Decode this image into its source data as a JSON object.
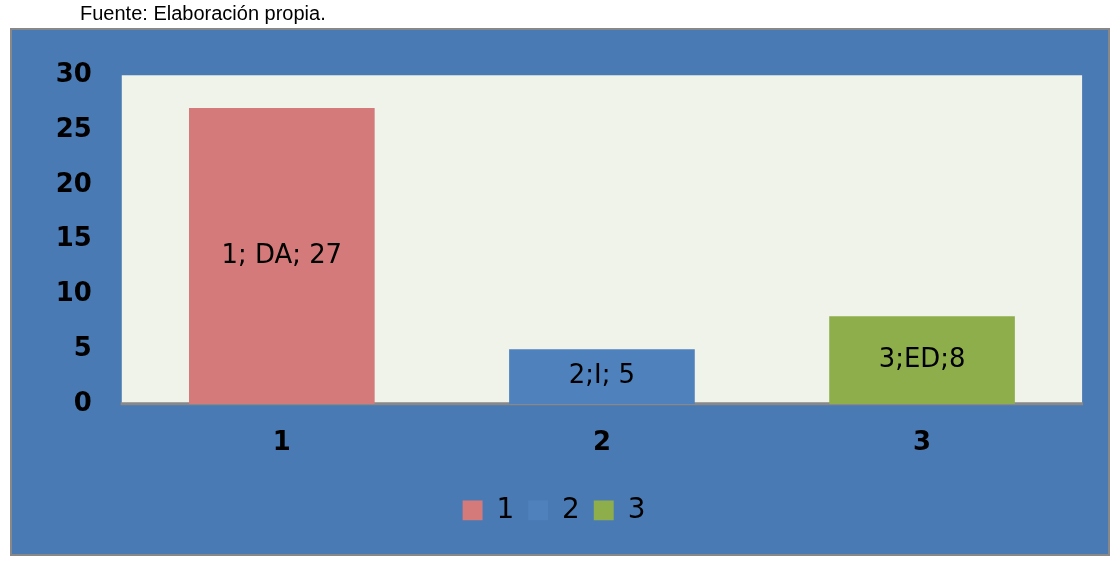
{
  "chart_data": {
    "type": "bar",
    "annotations": [
      "Fuente: Elaboración propia."
    ],
    "categories": [
      "1",
      "2",
      "3"
    ],
    "series": [
      {
        "name": "1",
        "color": "#d47a7b",
        "values": [
          27,
          null,
          null
        ],
        "value_labels": [
          "1; DA; 27",
          null,
          null
        ]
      },
      {
        "name": "2",
        "color": "#4f81bd",
        "values": [
          null,
          5,
          null
        ],
        "value_labels": [
          null,
          "2;I; 5",
          null
        ]
      },
      {
        "name": "3",
        "color": "#8eae4c",
        "values": [
          null,
          null,
          8
        ],
        "value_labels": [
          null,
          null,
          "3;ED;8"
        ]
      }
    ],
    "ylim": [
      0,
      30
    ],
    "yticks": [
      0,
      5,
      10,
      15,
      20,
      25,
      30
    ],
    "grid": false,
    "legend": "bottom"
  }
}
